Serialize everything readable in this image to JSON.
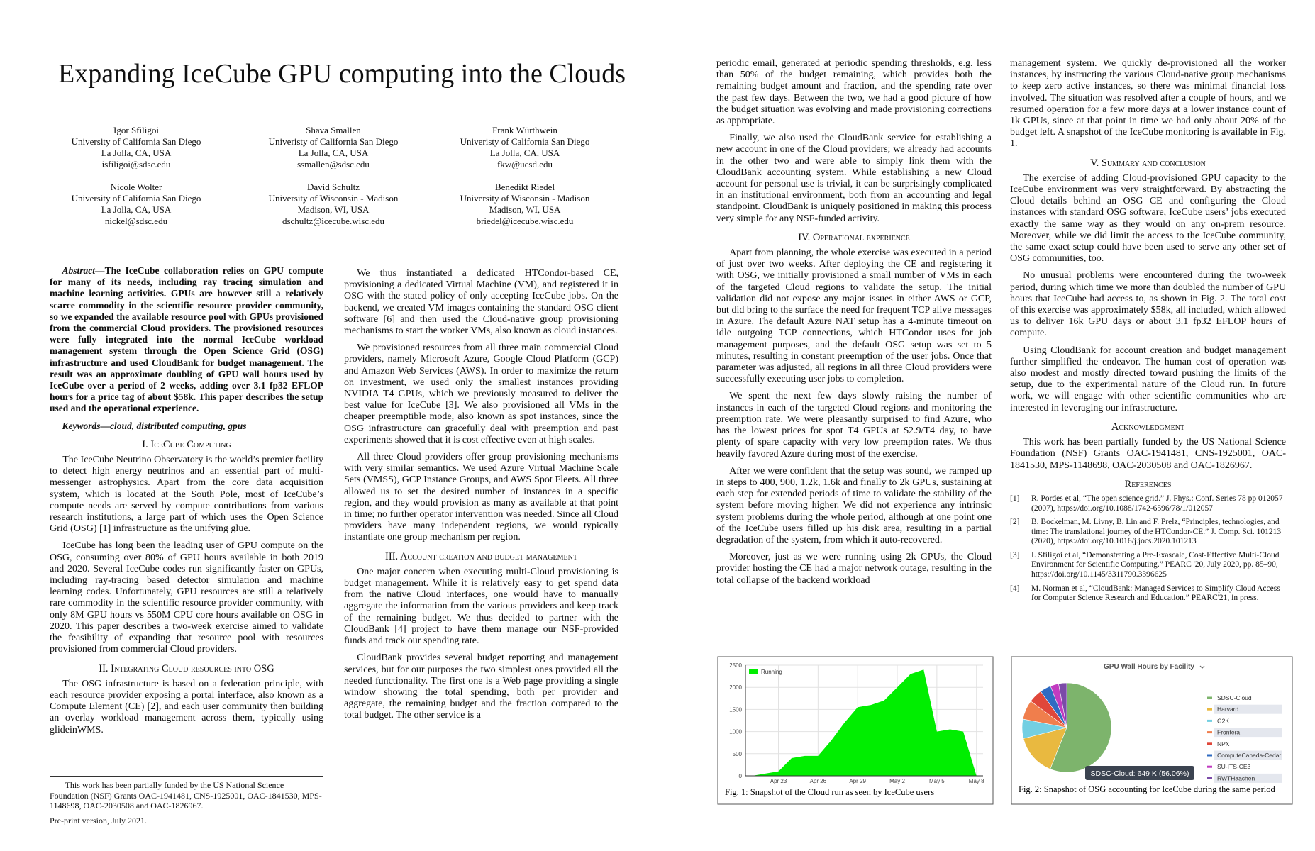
{
  "paper": {
    "title": "Expanding IceCube GPU computing into the Clouds",
    "authors": [
      {
        "name": "Igor Sfiligoi",
        "affiliation": "University of California San Diego",
        "location": "La Jolla, CA, USA",
        "email": "isfiligoi@sdsc.edu"
      },
      {
        "name": "Shava Smallen",
        "affiliation": "Univeristy of California San Diego",
        "location": "La Jolla, CA, USA",
        "email": "ssmallen@sdsc.edu"
      },
      {
        "name": "Frank Würthwein",
        "affiliation": "Univeristy of California San Diego",
        "location": "La Jolla, CA, USA",
        "email": "fkw@ucsd.edu"
      },
      {
        "name": "Nicole Wolter",
        "affiliation": "University of California San Diego",
        "location": "La Jolla, CA, USA",
        "email": "nickel@sdsc.edu"
      },
      {
        "name": "David Schultz",
        "affiliation": "University of Wisconsin - Madison",
        "location": "Madison, WI, USA",
        "email": "dschultz@icecube.wisc.edu"
      },
      {
        "name": "Benedikt Riedel",
        "affiliation": "University of Wisconsin - Madison",
        "location": "Madison, WI, USA",
        "email": "briedel@icecube.wisc.edu"
      }
    ],
    "columns": [
      [
        {
          "label": "Abstract—",
          "text": "The IceCube collaboration relies on GPU compute for many of its needs, including ray tracing simulation and machine learning activities. GPUs are however still a relatively scarce commodity in the scientific resource provider community, so we expanded the available resource pool with GPUs provisioned from the commercial Cloud providers. The provisioned resources were fully integrated into the normal IceCube workload management system through the Open Science Grid (OSG) infrastructure and used CloudBank for budget management. The result was an approximate doubling of GPU wall hours used by IceCube over a period of 2 weeks, adding over 3.1 fp32 EFLOP hours for a price tag of about $58k. This paper describes the setup used and the operational experience."
        },
        {
          "label": "Keywords—",
          "text": "cloud, distributed computing, gpus"
        },
        {
          "heading": "I. IceCube Computing"
        },
        {
          "text": "The IceCube Neutrino Observatory is the world’s premier facility to detect high energy neutrinos and an essential part of multi-messenger astrophysics. Apart from the core data acquisition system, which is located at the South Pole, most of IceCube’s compute needs are served by compute contributions from various research institutions, a large part of which uses the Open Science Grid (OSG) [1] infrastructure as the unifying glue."
        },
        {
          "text": "IceCube has long been the leading user of GPU compute on the OSG, consuming over 80% of GPU hours available in both 2019 and 2020. Several IceCube codes run significantly faster on GPUs, including ray-tracing based detector simulation and machine learning codes. Unfortunately, GPU resources are still a relatively rare commodity in the scientific resource provider community, with only 8M GPU hours vs 550M CPU core hours available on OSG in 2020. This paper describes a two-week exercise aimed to validate the feasibility of expanding that resource pool with resources provisioned from commercial Cloud providers."
        },
        {
          "heading": "II. Integrating Cloud resources into OSG"
        },
        {
          "text": "The OSG infrastructure is based on a federation principle, with each resource provider exposing a portal interface, also known as a Compute Element (CE) [2], and each user community then building an overlay workload management across them, typically using glideinWMS."
        }
      ],
      [
        {
          "text": "We thus instantiated a dedicated HTCondor-based CE, provisioning a dedicated Virtual Machine (VM), and registered it in OSG with the stated policy of only accepting IceCube jobs. On the backend, we created VM images containing the standard OSG client software [6] and then used the Cloud-native group provisioning mechanisms to start the worker VMs, also known as cloud instances."
        },
        {
          "text": "We provisioned resources from all three main commercial Cloud providers, namely Microsoft Azure, Google Cloud Platform (GCP) and Amazon Web Services (AWS). In order to maximize the return on investment, we used only the smallest instances providing NVIDIA T4 GPUs, which we previously measured to deliver the best value for IceCube [3]. We also provisioned all VMs in the cheaper preemptible mode, also known as spot instances, since the OSG infrastructure can gracefully deal with preemption and past experiments showed that it is cost effective even at high scales."
        },
        {
          "text": "All three Cloud providers offer group provisioning mechanisms with very similar semantics. We used Azure Virtual Machine Scale Sets (VMSS), GCP Instance Groups, and AWS Spot Fleets. All three allowed us to set the desired number of instances in a specific region, and they would provision as many as available at that point in time; no further operator intervention was needed. Since all Cloud providers have many independent regions, we would typically instantiate one group mechanism per region."
        },
        {
          "heading": "III. Account creation and budget management"
        },
        {
          "text": "One major concern when executing multi-Cloud provisioning is budget management. While it is relatively easy to get spend data from the native Cloud interfaces, one would have to manually aggregate the information from the various providers and keep track of the remaining budget. We thus decided to partner with the CloudBank [4] project to have them manage our NSF-provided funds and track our spending rate."
        },
        {
          "text": "CloudBank provides several budget reporting and management services, but for our purposes the two simplest ones provided all the needed functionality. The first one is a Web page providing a single window showing the total spending, both per provider and aggregate, the remaining budget and the fraction compared to the total budget. The other service is a"
        }
      ],
      [
        {
          "text": "periodic email, generated at periodic spending thresholds, e.g. less than 50% of the budget remaining, which provides both the remaining budget amount and fraction, and the spending rate over the past few days. Between the two, we had a good picture of how the budget situation was evolving and made provisioning corrections as appropriate.",
          "cont": true
        },
        {
          "text": "Finally, we also used the CloudBank service for establishing a new account in one of the Cloud providers; we already had accounts in the other two and were able to simply link them with the CloudBank accounting system. While establishing a new Cloud account for personal use is trivial, it can be surprisingly complicated in an institutional environment, both from an accounting and legal standpoint. CloudBank is uniquely positioned in making this process very simple for any NSF-funded activity."
        },
        {
          "heading": "IV. Operational experience"
        },
        {
          "text": "Apart from planning, the whole exercise was executed in a period of just over two weeks. After deploying the CE and registering it with OSG, we initially provisioned a small number of VMs in each of the targeted Cloud regions to validate the setup. The initial validation did not expose any major issues in either AWS or GCP, but did bring to the surface the need for frequent TCP alive messages in Azure. The default Azure NAT setup has a 4-minute timeout on idle outgoing TCP connections, which HTCondor uses for job management purposes, and the default OSG setup was set to 5 minutes, resulting in constant preemption of the user jobs. Once that parameter was adjusted, all regions in all three Cloud providers were successfully executing user jobs to completion."
        },
        {
          "text": "We spent the next few days slowly raising the number of instances in each of the targeted Cloud regions and monitoring the preemption rate. We were pleasantly surprised to find Azure, who has the lowest prices for spot T4 GPUs at $2.9/T4 day, to have plenty of spare capacity with very low preemption rates. We thus heavily favored Azure during most of the exercise."
        },
        {
          "text": "After we were confident that the setup was sound, we ramped up in steps to 400, 900, 1.2k, 1.6k and finally to 2k GPUs, sustaining at each step for extended periods of time to validate the stability of the system before moving higher. We did not experience any intrinsic system problems during the whole period, although at one point one of the IceCube users filled up his disk area, resulting in a partial degradation of the system, from which it auto-recovered."
        },
        {
          "text": "Moreover, just as we were running using 2k GPUs, the Cloud provider hosting the CE had a major network outage, resulting in the total collapse of the backend workload"
        }
      ],
      [
        {
          "text": "management system. We quickly de-provisioned all the worker instances, by instructing the various Cloud-native group mechanisms to keep zero active instances, so there was minimal financial loss involved. The situation was resolved after a couple of hours, and we resumed operation for a few more days at a lower instance count of 1k GPUs, since at that point in time we had only about 20% of the budget left. A snapshot of the IceCube monitoring is available in Fig. 1.",
          "cont": true
        },
        {
          "heading": "V. Summary and conclusion"
        },
        {
          "text": "The exercise of adding Cloud-provisioned GPU capacity to the IceCube environment was very straightforward. By abstracting the Cloud details behind an OSG CE and configuring the Cloud instances with standard OSG software, IceCube users’ jobs executed exactly the same way as they would on any on-prem resource. Moreover, while we did limit the access to the IceCube community, the same exact setup could have been used to serve any other set of OSG communities, too."
        },
        {
          "text": "No unusual problems were encountered during the two-week period, during which time we more than doubled the number of GPU hours that IceCube had access to, as shown in Fig. 2. The total cost of this exercise was approximately $58k, all included, which allowed us to deliver 16k GPU days or about 3.1 fp32 EFLOP hours of compute."
        },
        {
          "text": "Using CloudBank for account creation and budget management further simplified the endeavor. The human cost of operation was also modest and mostly directed toward pushing the limits of the setup, due to the experimental nature of the Cloud run. In future work, we will engage with other scientific communities who are interested in leveraging our infrastructure."
        },
        {
          "heading": "Acknowledgment"
        },
        {
          "text": "This work has been partially funded by the US National Science Foundation (NSF) Grants OAC-1941481, CNS-1925001, OAC-1841530, MPS-1148698, OAC-2030508 and OAC-1826967."
        },
        {
          "heading": "References"
        },
        {
          "references": [
            {
              "label": "[1]",
              "text": "R. Pordes et al, “The open science grid.” J. Phys.: Conf. Series 78 pp 012057 (2007), https://doi.org/10.1088/1742-6596/78/1/012057"
            },
            {
              "label": "[2]",
              "text": "B. Bockelman, M. Livny, B. Lin and F. Prelz, “Principles, technologies, and time: The translational journey of the HTCondor-CE.” J. Comp. Sci. 101213 (2020), https://doi.org/10.1016/j.jocs.2020.101213"
            },
            {
              "label": "[3]",
              "text": "I. Sfiligoi et al, “Demonstrating a Pre-Exascale, Cost-Effective Multi-Cloud Environment for Scientific Computing.” PEARC '20, July 2020, pp. 85–90, https://doi.org/10.1145/3311790.3396625"
            },
            {
              "label": "[4]",
              "text": "M. Norman et al, “CloudBank: Managed Services to Simplify Cloud Access for Computer Science Research and Education.” PEARC'21, in press."
            }
          ]
        }
      ]
    ],
    "footnote": "This work has been partially funded by the US National Science Foundation (NSF) Grants OAC-1941481, CNS-1925001, OAC-1841530, MPS-1148698, OAC-2030508 and OAC-1826967.",
    "preprint": "Pre-print version, July 2021.",
    "figures": [
      {
        "caption": "Fig. 1: Snapshot of the Cloud run as seen by IceCube users"
      },
      {
        "caption": "Fig. 2: Snapshot of OSG accounting for IceCube during the same period"
      }
    ]
  },
  "chart_data": [
    {
      "type": "area",
      "categories": [
        null,
        null,
        "Apr 23",
        null,
        null,
        "Apr 26",
        null,
        null,
        "Apr 29",
        null,
        null,
        "May 2",
        null,
        null,
        "May 5",
        null,
        null,
        "May 8"
      ],
      "series": [
        {
          "name": "Running",
          "color": "#00ee00",
          "values": [
            0,
            50,
            100,
            400,
            450,
            450,
            800,
            1200,
            1550,
            1600,
            1700,
            2000,
            2300,
            2400,
            1000,
            1050,
            1000,
            0
          ]
        }
      ],
      "ylim": [
        0,
        2500
      ],
      "yticks": [
        0,
        500,
        1000,
        1500,
        2000,
        2500
      ],
      "grid": true
    },
    {
      "type": "pie",
      "title": "GPU Wall Hours by Facility",
      "categories": [
        "SDSC-Cloud",
        "Harvard",
        "G2K",
        "Frontera",
        "NPX",
        "ComputeCanada-Cedar",
        "SU-ITS-CE3",
        "RWTHaachen"
      ],
      "values": [
        56.06,
        15,
        7,
        7,
        5,
        4,
        3,
        2.94
      ],
      "colors": [
        "#7db46c",
        "#e9b940",
        "#73cfe2",
        "#f07e4c",
        "#e0473a",
        "#2f6bc2",
        "#c13bc0",
        "#7b4ba8"
      ],
      "tooltip": "SDSC-Cloud: 649 K (56.06%)"
    }
  ]
}
